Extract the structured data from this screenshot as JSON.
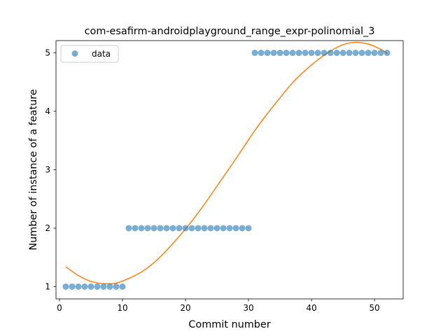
{
  "chart_data": {
    "type": "scatter",
    "title": "com-esafirm-androidplayground_range_expr-polinomial_3",
    "xlabel": "Commit number",
    "ylabel": "Number of instance of a feature",
    "xlim": [
      -0.55,
      54.55
    ],
    "ylim": [
      0.79,
      5.21
    ],
    "xticks": [
      0,
      10,
      20,
      30,
      40,
      50
    ],
    "yticks": [
      1,
      2,
      3,
      4,
      5
    ],
    "grid": false,
    "legend": {
      "placement": "upper-left",
      "entries": [
        "data"
      ]
    },
    "colors": {
      "data": "#1f77b4",
      "fit": "#ff7f0e",
      "data_alpha": 0.6
    },
    "series": [
      {
        "name": "data",
        "kind": "scatter",
        "x": [
          1,
          2,
          3,
          4,
          5,
          6,
          7,
          8,
          9,
          10,
          11,
          12,
          13,
          14,
          15,
          16,
          17,
          18,
          19,
          20,
          21,
          22,
          23,
          24,
          25,
          26,
          27,
          28,
          29,
          30,
          31,
          32,
          33,
          34,
          35,
          36,
          37,
          38,
          39,
          40,
          41,
          42,
          43,
          44,
          45,
          46,
          47,
          48,
          49,
          50,
          51,
          52
        ],
        "y": [
          1,
          1,
          1,
          1,
          1,
          1,
          1,
          1,
          1,
          1,
          2,
          2,
          2,
          2,
          2,
          2,
          2,
          2,
          2,
          2,
          2,
          2,
          2,
          2,
          2,
          2,
          2,
          2,
          2,
          2,
          5,
          5,
          5,
          5,
          5,
          5,
          5,
          5,
          5,
          5,
          5,
          5,
          5,
          5,
          5,
          5,
          5,
          5,
          5,
          5,
          5,
          5
        ]
      },
      {
        "kind": "line",
        "x": [
          1,
          3,
          5,
          7,
          9,
          11,
          13,
          15,
          17,
          19,
          21,
          23,
          25,
          27,
          29,
          31,
          33,
          35,
          37,
          39,
          41,
          43,
          45,
          47,
          49,
          51,
          52
        ],
        "y": [
          1.34,
          1.19,
          1.09,
          1.05,
          1.06,
          1.14,
          1.25,
          1.41,
          1.62,
          1.86,
          2.12,
          2.41,
          2.72,
          3.03,
          3.35,
          3.67,
          3.96,
          4.23,
          4.49,
          4.7,
          4.88,
          5.03,
          5.14,
          5.18,
          5.15,
          5.06,
          4.99
        ]
      }
    ]
  }
}
